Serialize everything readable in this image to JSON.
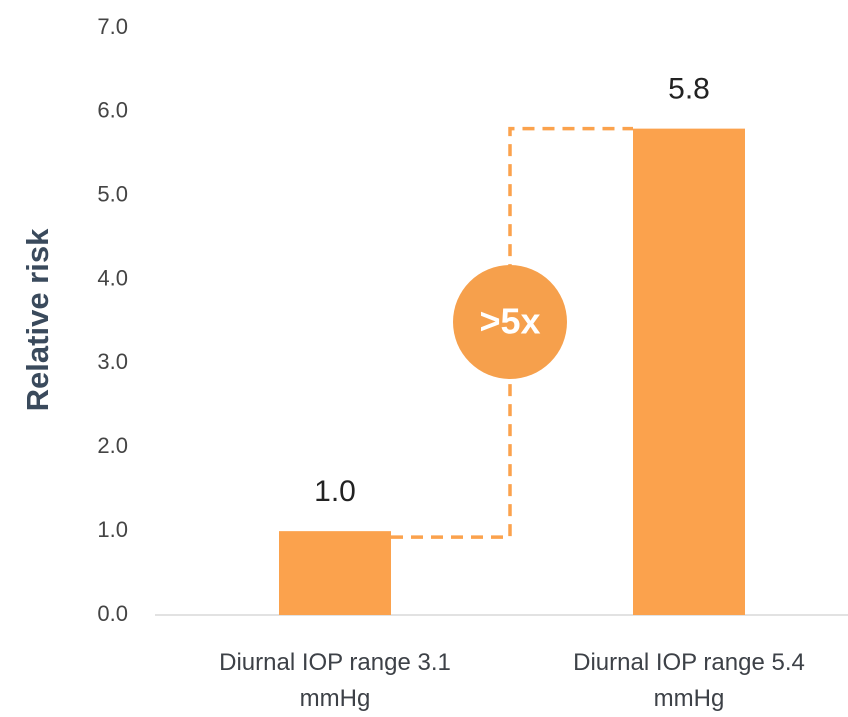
{
  "chart_data": {
    "type": "bar",
    "y_axis_label": "Relative risk",
    "categories": [
      "Diurnal IOP range 3.1 mmHg",
      "Diurnal IOP range 5.4 mmHg"
    ],
    "values": [
      1.0,
      5.8
    ],
    "value_labels": [
      "1.0",
      "5.8"
    ],
    "color": "#fba24d",
    "annotation": ">5x",
    "ylim": [
      0,
      7
    ],
    "yticks": [
      {
        "value": 0,
        "label": "0.0"
      },
      {
        "value": 1,
        "label": "1.0"
      },
      {
        "value": 2,
        "label": "2.0"
      },
      {
        "value": 3,
        "label": "3.0"
      },
      {
        "value": 4,
        "label": "4.0"
      },
      {
        "value": 5,
        "label": "5.0"
      },
      {
        "value": 6,
        "label": "6.0"
      },
      {
        "value": 7,
        "label": "7.0"
      }
    ],
    "grid": false
  }
}
